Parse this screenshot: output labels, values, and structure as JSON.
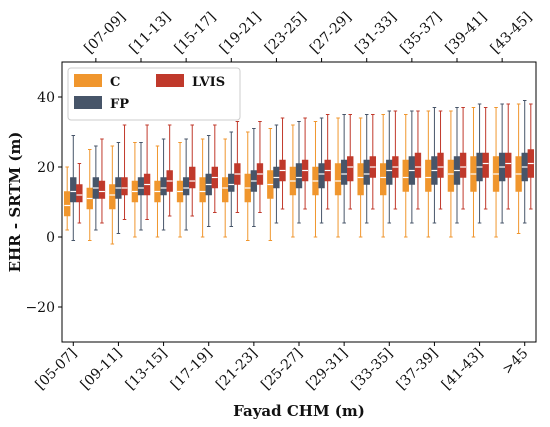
{
  "chart_data": {
    "type": "boxplot",
    "title": "",
    "xlabel": "Fayad CHM (m)",
    "ylabel": "EHR - SRTM (m)",
    "ylim": [
      -30,
      50
    ],
    "yticks": [
      -20,
      0,
      20,
      40
    ],
    "grid": false,
    "legend_position": "top-left",
    "x_top_labels": [
      "[07-09]",
      "[11-13]",
      "[15-17]",
      "[19-21]",
      "[23-25]",
      "[27-29]",
      "[31-33]",
      "[35-37]",
      "[39-41]",
      "[43-45]"
    ],
    "x_bottom_labels": [
      "[05-07]",
      "[09-11]",
      "[13-15]",
      "[17-19]",
      "[21-23]",
      "[25-27]",
      "[29-31]",
      "[33-35]",
      "[37-39]",
      "[41-43]",
      ">45"
    ],
    "categories": [
      "[05-07]",
      "[07-09]",
      "[09-11]",
      "[11-13]",
      "[13-15]",
      "[15-17]",
      "[17-19]",
      "[19-21]",
      "[21-23]",
      "[23-25]",
      "[25-27]",
      "[27-29]",
      "[29-31]",
      "[31-33]",
      "[33-35]",
      "[35-37]",
      "[37-39]",
      "[39-41]",
      "[41-43]",
      "[43-45]",
      ">45"
    ],
    "series": [
      {
        "name": "C",
        "color": "#f0962d",
        "boxes": [
          {
            "whislo": 2,
            "q1": 6,
            "med": 9,
            "q3": 13,
            "whishi": 20
          },
          {
            "whislo": -1,
            "q1": 8,
            "med": 11,
            "q3": 14,
            "whishi": 25
          },
          {
            "whislo": -2,
            "q1": 8,
            "med": 12,
            "q3": 15,
            "whishi": 26
          },
          {
            "whislo": 0,
            "q1": 10,
            "med": 13,
            "q3": 16,
            "whishi": 27
          },
          {
            "whislo": 0,
            "q1": 10,
            "med": 13,
            "q3": 16,
            "whishi": 26
          },
          {
            "whislo": 0,
            "q1": 10,
            "med": 13,
            "q3": 16,
            "whishi": 27
          },
          {
            "whislo": 0,
            "q1": 10,
            "med": 13,
            "q3": 17,
            "whishi": 28
          },
          {
            "whislo": 0,
            "q1": 10,
            "med": 14,
            "q3": 17,
            "whishi": 28
          },
          {
            "whislo": -1,
            "q1": 10,
            "med": 14,
            "q3": 18,
            "whishi": 30
          },
          {
            "whislo": -1,
            "q1": 11,
            "med": 15,
            "q3": 19,
            "whishi": 31
          },
          {
            "whislo": 0,
            "q1": 12,
            "med": 16,
            "q3": 20,
            "whishi": 32
          },
          {
            "whislo": 0,
            "q1": 12,
            "med": 16,
            "q3": 20,
            "whishi": 33
          },
          {
            "whislo": 0,
            "q1": 12,
            "med": 16,
            "q3": 21,
            "whishi": 34
          },
          {
            "whislo": 0,
            "q1": 12,
            "med": 17,
            "q3": 21,
            "whishi": 34
          },
          {
            "whislo": 0,
            "q1": 12,
            "med": 17,
            "q3": 21,
            "whishi": 35
          },
          {
            "whislo": 0,
            "q1": 13,
            "med": 17,
            "q3": 22,
            "whishi": 35
          },
          {
            "whislo": 0,
            "q1": 13,
            "med": 17,
            "q3": 22,
            "whishi": 36
          },
          {
            "whislo": 0,
            "q1": 13,
            "med": 18,
            "q3": 22,
            "whishi": 36
          },
          {
            "whislo": 0,
            "q1": 13,
            "med": 18,
            "q3": 23,
            "whishi": 37
          },
          {
            "whislo": 0,
            "q1": 13,
            "med": 18,
            "q3": 23,
            "whishi": 37
          },
          {
            "whislo": 1,
            "q1": 13,
            "med": 18,
            "q3": 23,
            "whishi": 38
          }
        ]
      },
      {
        "name": "FP",
        "color": "#475569",
        "boxes": [
          {
            "whislo": -1,
            "q1": 10,
            "med": 13,
            "q3": 17,
            "whishi": 29
          },
          {
            "whislo": 2,
            "q1": 11,
            "med": 14,
            "q3": 17,
            "whishi": 26
          },
          {
            "whislo": 1,
            "q1": 11,
            "med": 14,
            "q3": 17,
            "whishi": 27
          },
          {
            "whislo": 2,
            "q1": 12,
            "med": 14,
            "q3": 17,
            "whishi": 27
          },
          {
            "whislo": 2,
            "q1": 12,
            "med": 14,
            "q3": 17,
            "whishi": 28
          },
          {
            "whislo": 2,
            "q1": 12,
            "med": 14,
            "q3": 17,
            "whishi": 28
          },
          {
            "whislo": 3,
            "q1": 12,
            "med": 15,
            "q3": 18,
            "whishi": 29
          },
          {
            "whislo": 3,
            "q1": 13,
            "med": 15,
            "q3": 18,
            "whishi": 30
          },
          {
            "whislo": 3,
            "q1": 13,
            "med": 16,
            "q3": 19,
            "whishi": 31
          },
          {
            "whislo": 4,
            "q1": 14,
            "med": 17,
            "q3": 20,
            "whishi": 32
          },
          {
            "whislo": 4,
            "q1": 14,
            "med": 17,
            "q3": 21,
            "whishi": 33
          },
          {
            "whislo": 4,
            "q1": 14,
            "med": 18,
            "q3": 21,
            "whishi": 34
          },
          {
            "whislo": 4,
            "q1": 15,
            "med": 18,
            "q3": 22,
            "whishi": 35
          },
          {
            "whislo": 4,
            "q1": 15,
            "med": 18,
            "q3": 22,
            "whishi": 35
          },
          {
            "whislo": 4,
            "q1": 15,
            "med": 19,
            "q3": 22,
            "whishi": 36
          },
          {
            "whislo": 4,
            "q1": 15,
            "med": 19,
            "q3": 23,
            "whishi": 36
          },
          {
            "whislo": 4,
            "q1": 15,
            "med": 19,
            "q3": 23,
            "whishi": 37
          },
          {
            "whislo": 4,
            "q1": 15,
            "med": 19,
            "q3": 23,
            "whishi": 37
          },
          {
            "whislo": 4,
            "q1": 16,
            "med": 20,
            "q3": 24,
            "whishi": 38
          },
          {
            "whislo": 4,
            "q1": 16,
            "med": 20,
            "q3": 24,
            "whishi": 38
          },
          {
            "whislo": 4,
            "q1": 16,
            "med": 20,
            "q3": 24,
            "whishi": 39
          }
        ]
      },
      {
        "name": "LVIS",
        "color": "#c0392b",
        "boxes": [
          {
            "whislo": 4,
            "q1": 10,
            "med": 12,
            "q3": 15,
            "whishi": 21
          },
          {
            "whislo": 4,
            "q1": 11,
            "med": 13,
            "q3": 16,
            "whishi": 28
          },
          {
            "whislo": 5,
            "q1": 12,
            "med": 14,
            "q3": 17,
            "whishi": 32
          },
          {
            "whislo": 5,
            "q1": 12,
            "med": 15,
            "q3": 18,
            "whishi": 32
          },
          {
            "whislo": 6,
            "q1": 13,
            "med": 16,
            "q3": 19,
            "whishi": 32
          },
          {
            "whislo": 6,
            "q1": 14,
            "med": 16,
            "q3": 20,
            "whishi": 32
          },
          {
            "whislo": 7,
            "q1": 14,
            "med": 17,
            "q3": 20,
            "whishi": 32
          },
          {
            "whislo": 7,
            "q1": 15,
            "med": 18,
            "q3": 21,
            "whishi": 33
          },
          {
            "whislo": 7,
            "q1": 15,
            "med": 18,
            "q3": 21,
            "whishi": 33
          },
          {
            "whislo": 8,
            "q1": 16,
            "med": 19,
            "q3": 22,
            "whishi": 34
          },
          {
            "whislo": 8,
            "q1": 16,
            "med": 19,
            "q3": 22,
            "whishi": 34
          },
          {
            "whislo": 8,
            "q1": 16,
            "med": 19,
            "q3": 22,
            "whishi": 35
          },
          {
            "whislo": 8,
            "q1": 16,
            "med": 20,
            "q3": 23,
            "whishi": 35
          },
          {
            "whislo": 8,
            "q1": 17,
            "med": 20,
            "q3": 23,
            "whishi": 35
          },
          {
            "whislo": 8,
            "q1": 17,
            "med": 20,
            "q3": 23,
            "whishi": 36
          },
          {
            "whislo": 8,
            "q1": 17,
            "med": 20,
            "q3": 24,
            "whishi": 36
          },
          {
            "whislo": 8,
            "q1": 17,
            "med": 20,
            "q3": 24,
            "whishi": 36
          },
          {
            "whislo": 8,
            "q1": 17,
            "med": 20,
            "q3": 24,
            "whishi": 37
          },
          {
            "whislo": 8,
            "q1": 17,
            "med": 21,
            "q3": 24,
            "whishi": 37
          },
          {
            "whislo": 8,
            "q1": 17,
            "med": 21,
            "q3": 24,
            "whishi": 38
          },
          {
            "whislo": 8,
            "q1": 17,
            "med": 21,
            "q3": 25,
            "whishi": 38
          }
        ]
      }
    ]
  }
}
